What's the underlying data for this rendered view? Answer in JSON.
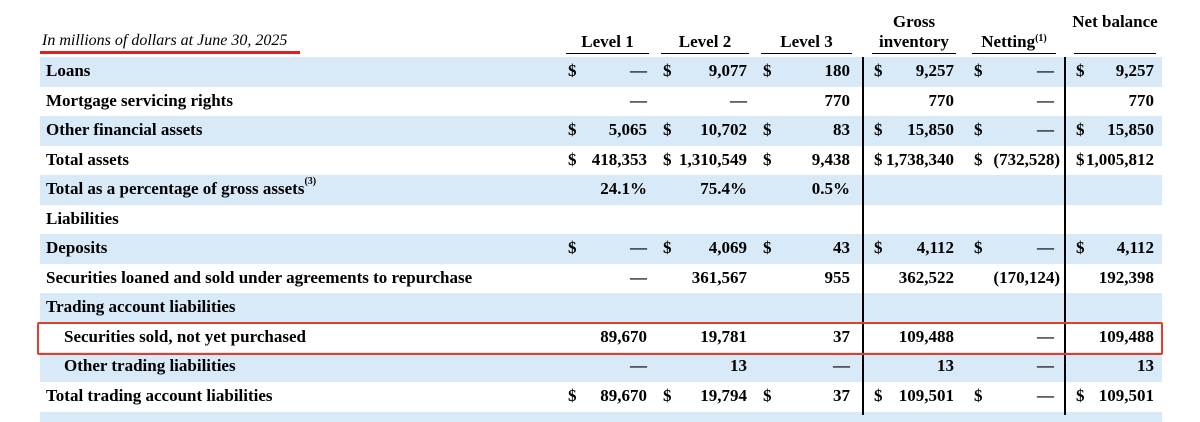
{
  "header": {
    "caption": "In millions of dollars at June 30, 2025",
    "columns": [
      {
        "text": "Level 1"
      },
      {
        "text": "Level 2"
      },
      {
        "text": "Level 3"
      },
      {
        "text": "Gross inventory"
      },
      {
        "text": "Netting",
        "note": "(1)"
      },
      {
        "text": "Net balance"
      }
    ]
  },
  "table": {
    "rows": [
      {
        "label": "Loans",
        "cells": [
          {
            "prefix": "$",
            "text": "—"
          },
          {
            "prefix": "$",
            "text": "9,077"
          },
          {
            "prefix": "$",
            "text": "180"
          },
          {
            "prefix": "$",
            "text": "9,257"
          },
          {
            "prefix": "$",
            "text": "—"
          },
          {
            "prefix": "$",
            "text": "9,257"
          }
        ]
      },
      {
        "label": "Mortgage servicing rights",
        "cells": [
          {
            "text": "—"
          },
          {
            "text": "—"
          },
          {
            "text": "770"
          },
          {
            "text": "770"
          },
          {
            "text": "—"
          },
          {
            "text": "770"
          }
        ]
      },
      {
        "label": "Other financial assets",
        "cells": [
          {
            "prefix": "$",
            "text": "5,065"
          },
          {
            "prefix": "$",
            "text": "10,702"
          },
          {
            "prefix": "$",
            "text": "83"
          },
          {
            "prefix": "$",
            "text": "15,850"
          },
          {
            "prefix": "$",
            "text": "—"
          },
          {
            "prefix": "$",
            "text": "15,850"
          }
        ]
      },
      {
        "label": "Total assets",
        "cells": [
          {
            "prefix": "$",
            "text": "418,353"
          },
          {
            "prefix": "$",
            "text": "1,310,549"
          },
          {
            "prefix": "$",
            "text": "9,438"
          },
          {
            "prefix": "$",
            "text": "1,738,340"
          },
          {
            "prefix": "$",
            "text": "(732,528)"
          },
          {
            "prefix": "$",
            "text": "1,005,812"
          }
        ]
      },
      {
        "label": "Total as a percentage of gross assets",
        "note": "(3)",
        "cells": [
          {
            "text": "24.1%"
          },
          {
            "text": "75.4%"
          },
          {
            "text": "0.5%"
          }
        ]
      },
      {
        "label": "Liabilities",
        "cells": []
      },
      {
        "label": "Deposits",
        "cells": [
          {
            "prefix": "$",
            "text": "—"
          },
          {
            "prefix": "$",
            "text": "4,069"
          },
          {
            "prefix": "$",
            "text": "43"
          },
          {
            "prefix": "$",
            "text": "4,112"
          },
          {
            "prefix": "$",
            "text": "—"
          },
          {
            "prefix": "$",
            "text": "4,112"
          }
        ]
      },
      {
        "label": "Securities loaned and sold under agreements to repurchase",
        "cells": [
          {
            "text": "—"
          },
          {
            "text": "361,567"
          },
          {
            "text": "955"
          },
          {
            "text": "362,522"
          },
          {
            "text": "(170,124)"
          },
          {
            "text": "192,398"
          }
        ]
      },
      {
        "label": "Trading account liabilities",
        "cells": []
      },
      {
        "label": "Securities sold, not yet purchased",
        "cells": [
          {
            "text": "89,670"
          },
          {
            "text": "19,781"
          },
          {
            "text": "37"
          },
          {
            "text": "109,488"
          },
          {
            "text": "—"
          },
          {
            "text": "109,488"
          }
        ]
      },
      {
        "label": "Other trading liabilities",
        "cells": [
          {
            "text": "—"
          },
          {
            "text": "13"
          },
          {
            "text": "—"
          },
          {
            "text": "13"
          },
          {
            "text": "—"
          },
          {
            "text": "13"
          }
        ]
      },
      {
        "label": "Total trading account liabilities",
        "cells": [
          {
            "prefix": "$",
            "text": "89,670"
          },
          {
            "prefix": "$",
            "text": "19,794"
          },
          {
            "prefix": "$",
            "text": "37"
          },
          {
            "prefix": "$",
            "text": "109,501"
          },
          {
            "prefix": "$",
            "text": "—"
          },
          {
            "prefix": "$",
            "text": "109,501"
          }
        ]
      }
    ]
  }
}
